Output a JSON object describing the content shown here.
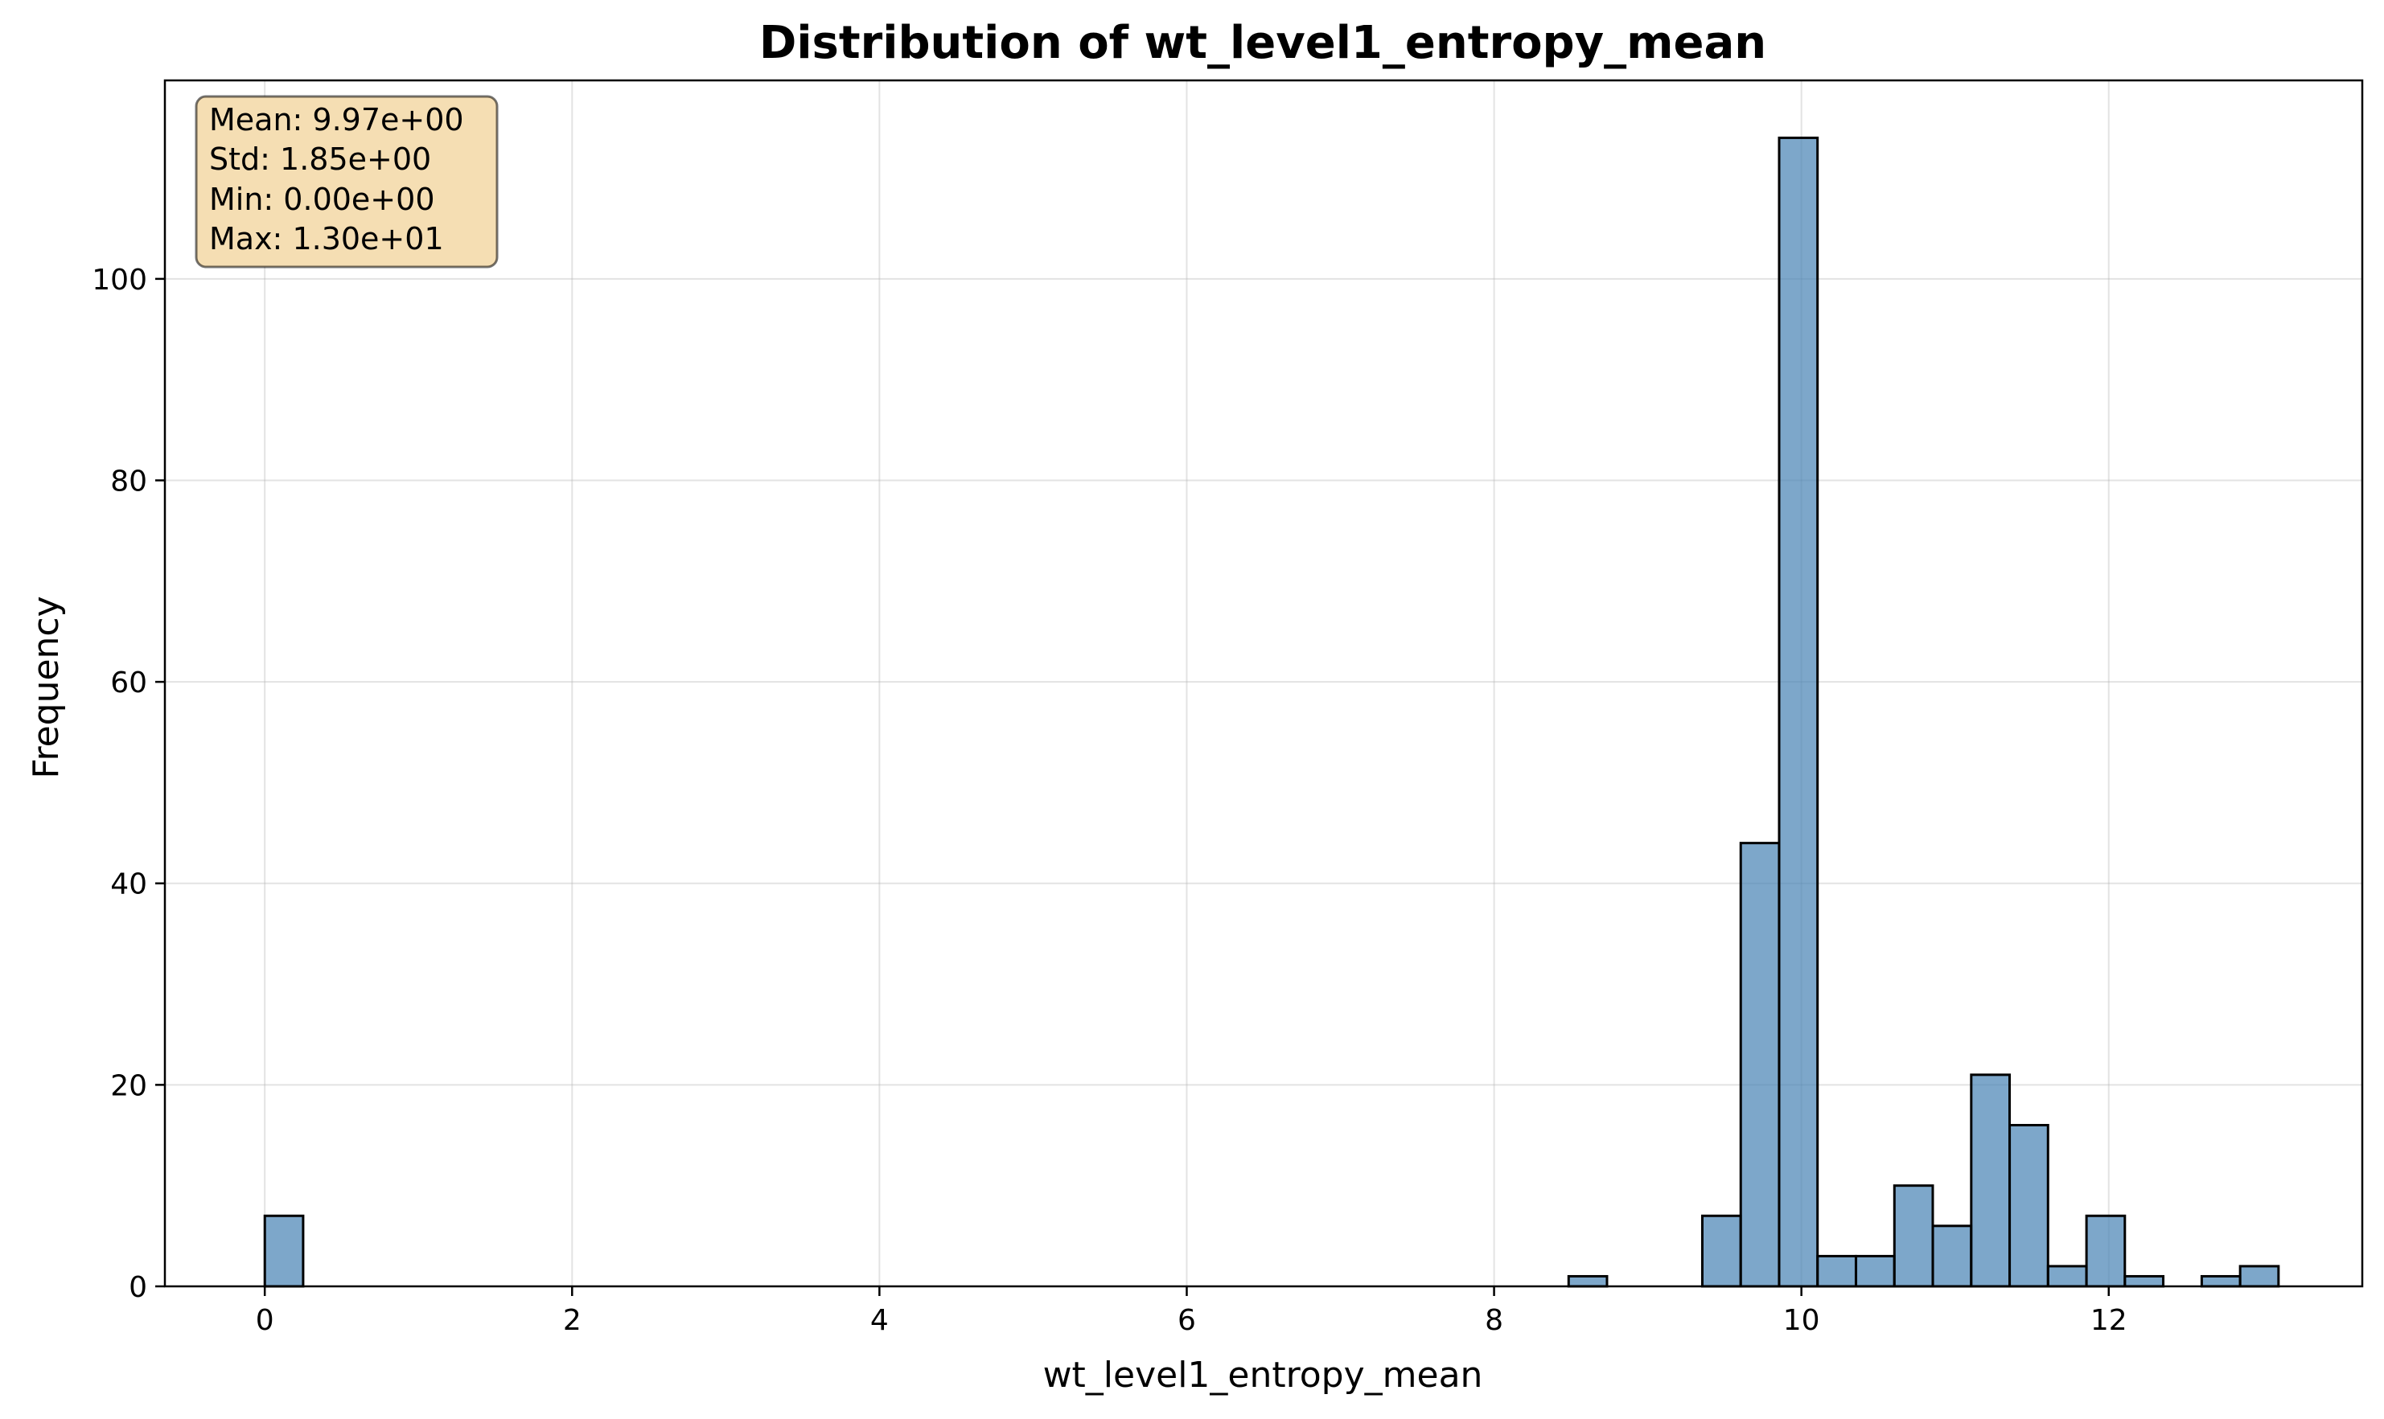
{
  "chart_data": {
    "type": "bar",
    "title": "Distribution of wt_level1_entropy_mean",
    "xlabel": "wt_level1_entropy_mean",
    "ylabel": "Frequency",
    "xlim": [
      -0.65,
      13.65
    ],
    "ylim": [
      0,
      119.7
    ],
    "xticks": [
      0,
      2,
      4,
      6,
      8,
      10,
      12
    ],
    "yticks": [
      0,
      20,
      40,
      60,
      80,
      100
    ],
    "grid": true,
    "bin_edges_start": 0,
    "bin_width": 0.2496,
    "bins": [
      {
        "x": 0.125,
        "count": 7
      },
      {
        "x": 8.61,
        "count": 1
      },
      {
        "x": 9.48,
        "count": 7
      },
      {
        "x": 9.73,
        "count": 44
      },
      {
        "x": 9.98,
        "count": 114
      },
      {
        "x": 10.23,
        "count": 3
      },
      {
        "x": 10.48,
        "count": 3
      },
      {
        "x": 10.73,
        "count": 10
      },
      {
        "x": 10.98,
        "count": 6
      },
      {
        "x": 11.23,
        "count": 21
      },
      {
        "x": 11.48,
        "count": 16
      },
      {
        "x": 11.73,
        "count": 2
      },
      {
        "x": 11.98,
        "count": 7
      },
      {
        "x": 12.23,
        "count": 1
      },
      {
        "x": 12.73,
        "count": 1
      },
      {
        "x": 12.98,
        "count": 2
      }
    ],
    "bar_color": "#4682b4",
    "stats_box": {
      "lines": [
        "Mean: 9.97e+00",
        "Std: 1.85e+00",
        "Min: 0.00e+00",
        "Max: 1.30e+01"
      ],
      "background": "#f5deb3",
      "placement": "top-left"
    }
  }
}
